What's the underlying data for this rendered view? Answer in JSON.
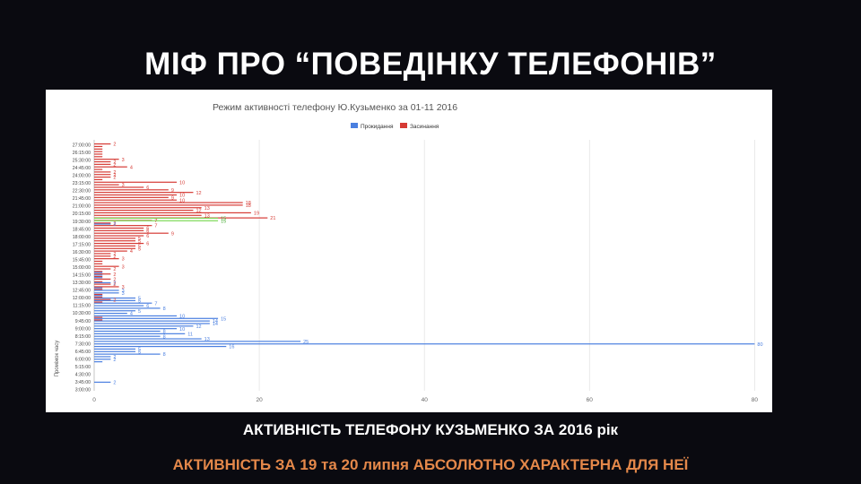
{
  "slide": {
    "title": "МІФ ПРО “ПОВЕДІНКУ ТЕЛЕФОНІВ”",
    "caption": "АКТИВНІСТЬ ТЕЛЕФОНУ КУЗЬМЕНКО ЗА 2016 рік",
    "subcaption": "АКТИВНІСТЬ ЗА  19 та 20 липня АБСОЛЮТНО ХАРАКТЕРНА ДЛЯ НЕЇ"
  },
  "chart_data": {
    "type": "bar",
    "orientation": "horizontal",
    "title": "Режим активності телефону Ю.Кузьменко за 01-11 2016",
    "xlabel": "",
    "ylabel": "Проміжок часу",
    "xlim": [
      0,
      82
    ],
    "xticks": [
      0,
      20,
      40,
      60,
      80
    ],
    "grid": true,
    "legend_position": "top",
    "tick_labels": [
      "27:00:00",
      "26:15:00",
      "25:30:00",
      "24:45:00",
      "24:00:00",
      "23:15:00",
      "22:30:00",
      "21:45:00",
      "21:00:00",
      "20:15:00",
      "19:30:00",
      "18:45:00",
      "18:00:00",
      "17:15:00",
      "16:30:00",
      "15:45:00",
      "15:00:00",
      "14:15:00",
      "13:30:00",
      "12:45:00",
      "12:00:00",
      "11:15:00",
      "10:30:00",
      "9:45:00",
      "9:00:00",
      "8:15:00",
      "7:30:00",
      "6:45:00",
      "6:00:00",
      "5:15:00",
      "4:30:00",
      "3:45:00",
      "3:00:00"
    ],
    "categories_top_to_bottom": [
      "27:00:00",
      "26:45:00",
      "26:30:00",
      "26:15:00",
      "26:00:00",
      "25:45:00",
      "25:30:00",
      "25:15:00",
      "25:00:00",
      "24:45:00",
      "24:30:00",
      "24:15:00",
      "24:00:00",
      "23:45:00",
      "23:30:00",
      "23:15:00",
      "23:00:00",
      "22:45:00",
      "22:30:00",
      "22:15:00",
      "22:00:00",
      "21:45:00",
      "21:30:00",
      "21:15:00",
      "21:00:00",
      "20:45:00",
      "20:30:00",
      "20:15:00",
      "20:00:00",
      "19:45:00",
      "19:30:00",
      "19:15:00",
      "19:00:00",
      "18:45:00",
      "18:30:00",
      "18:15:00",
      "18:00:00",
      "17:45:00",
      "17:30:00",
      "17:15:00",
      "17:00:00",
      "16:45:00",
      "16:30:00",
      "16:15:00",
      "16:00:00",
      "15:45:00",
      "15:30:00",
      "15:15:00",
      "15:00:00",
      "14:45:00",
      "14:30:00",
      "14:15:00",
      "14:00:00",
      "13:45:00",
      "13:30:00",
      "13:15:00",
      "13:00:00",
      "12:45:00",
      "12:30:00",
      "12:15:00",
      "12:00:00",
      "11:45:00",
      "11:30:00",
      "11:15:00",
      "11:00:00",
      "10:45:00",
      "10:30:00",
      "10:15:00",
      "10:00:00",
      "9:45:00",
      "9:30:00",
      "9:15:00",
      "9:00:00",
      "8:45:00",
      "8:30:00",
      "8:15:00",
      "8:00:00",
      "7:45:00",
      "7:30:00",
      "7:15:00",
      "7:00:00",
      "6:45:00",
      "6:30:00",
      "6:15:00",
      "6:00:00",
      "5:45:00",
      "5:30:00",
      "5:15:00",
      "5:00:00",
      "4:45:00",
      "4:30:00",
      "4:15:00",
      "4:00:00",
      "3:45:00",
      "3:30:00",
      "3:15:00",
      "3:00:00"
    ],
    "series": [
      {
        "name": "Прокидання",
        "color": "#4a7fe0",
        "values": [
          0,
          0,
          0,
          0,
          0,
          0,
          0,
          0,
          0,
          0,
          0,
          0,
          0,
          0,
          0,
          0,
          0,
          0,
          0,
          0,
          0,
          0,
          0,
          0,
          0,
          0,
          0,
          0,
          0,
          0,
          0,
          2,
          0,
          0,
          0,
          0,
          0,
          0,
          0,
          0,
          0,
          0,
          0,
          0,
          0,
          0,
          0,
          0,
          0,
          0,
          1,
          1,
          1,
          0,
          2,
          0,
          1,
          3,
          3,
          1,
          5,
          5,
          7,
          6,
          8,
          5,
          4,
          10,
          15,
          14,
          14,
          12,
          10,
          8,
          11,
          8,
          13,
          25,
          80,
          16,
          5,
          5,
          8,
          2,
          2,
          1,
          0,
          0,
          0,
          0,
          0,
          0,
          0,
          2,
          0,
          0,
          0
        ]
      },
      {
        "name": "Засинання",
        "color": "#d63a34",
        "values": [
          2,
          1,
          1,
          1,
          1,
          1,
          3,
          2,
          2,
          4,
          1,
          2,
          2,
          2,
          1,
          10,
          3,
          6,
          9,
          12,
          10,
          9,
          10,
          18,
          18,
          13,
          12,
          19,
          13,
          21,
          7,
          2,
          7,
          6,
          6,
          9,
          6,
          5,
          5,
          6,
          5,
          5,
          4,
          2,
          2,
          3,
          1,
          1,
          3,
          2,
          1,
          2,
          1,
          2,
          1,
          2,
          3,
          1,
          0,
          1,
          1,
          2,
          1,
          0,
          0,
          0,
          0,
          0,
          1,
          1,
          0,
          0,
          0,
          0,
          0,
          0,
          0,
          0,
          0,
          0,
          0,
          0,
          0,
          0,
          0,
          0,
          0,
          0,
          0,
          0,
          0,
          0,
          0,
          0,
          0,
          0,
          0
        ]
      }
    ],
    "highlight_series": {
      "name": "",
      "color": "#7ed957",
      "rows": [
        "19:45:00",
        "19:30:00"
      ],
      "values": [
        15,
        15
      ]
    }
  }
}
